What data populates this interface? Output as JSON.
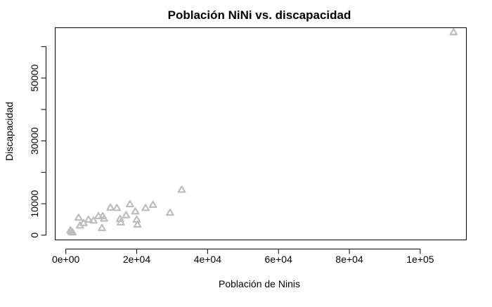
{
  "chart_data": {
    "type": "scatter",
    "title": "Población NiNi vs. discapacidad",
    "xlabel": "Población de Ninis",
    "ylabel": "Discapacidad",
    "xlim": [
      -3000,
      113000
    ],
    "ylim": [
      -1500,
      66000
    ],
    "x_ticks": [
      {
        "value": 0,
        "label": "0e+00"
      },
      {
        "value": 20000,
        "label": "2e+04"
      },
      {
        "value": 40000,
        "label": "4e+04"
      },
      {
        "value": 60000,
        "label": "6e+04"
      },
      {
        "value": 80000,
        "label": "8e+04"
      },
      {
        "value": 100000,
        "label": "1e+05"
      }
    ],
    "y_ticks": [
      {
        "value": 0,
        "label": "0",
        "labeled": true
      },
      {
        "value": 10000,
        "label": "10000",
        "labeled": true
      },
      {
        "value": 20000,
        "label": "20000",
        "labeled": false
      },
      {
        "value": 30000,
        "label": "30000",
        "labeled": true
      },
      {
        "value": 40000,
        "label": "40000",
        "labeled": false
      },
      {
        "value": 50000,
        "label": "50000",
        "labeled": true
      },
      {
        "value": 60000,
        "label": "60000",
        "labeled": false
      }
    ],
    "marker": "open-triangle",
    "color": "#BEBEBE",
    "grid": false,
    "points": [
      {
        "x": 1300,
        "y": 1500
      },
      {
        "x": 1600,
        "y": 1000
      },
      {
        "x": 1900,
        "y": 800
      },
      {
        "x": 3600,
        "y": 5500
      },
      {
        "x": 4000,
        "y": 3000
      },
      {
        "x": 5000,
        "y": 3800
      },
      {
        "x": 6400,
        "y": 4900
      },
      {
        "x": 7800,
        "y": 4600
      },
      {
        "x": 9200,
        "y": 6000
      },
      {
        "x": 10200,
        "y": 2200
      },
      {
        "x": 10400,
        "y": 6000
      },
      {
        "x": 10800,
        "y": 5200
      },
      {
        "x": 12600,
        "y": 8700
      },
      {
        "x": 14400,
        "y": 8600
      },
      {
        "x": 15300,
        "y": 5100
      },
      {
        "x": 15500,
        "y": 4000
      },
      {
        "x": 17000,
        "y": 6300
      },
      {
        "x": 18100,
        "y": 9800
      },
      {
        "x": 19600,
        "y": 7500
      },
      {
        "x": 20000,
        "y": 4900
      },
      {
        "x": 20200,
        "y": 3300
      },
      {
        "x": 22500,
        "y": 8600
      },
      {
        "x": 24600,
        "y": 9600
      },
      {
        "x": 29400,
        "y": 7100
      },
      {
        "x": 32700,
        "y": 14400
      },
      {
        "x": 109400,
        "y": 64500
      }
    ]
  }
}
